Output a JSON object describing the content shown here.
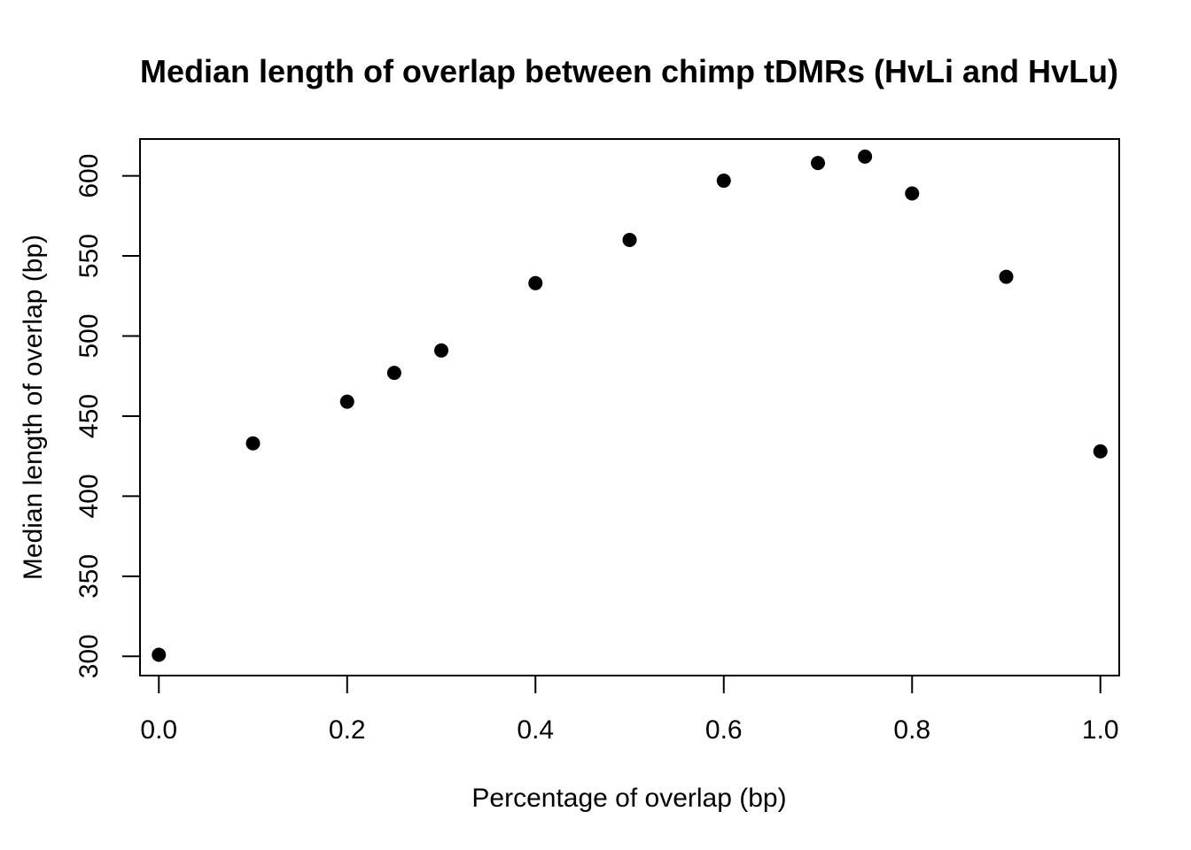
{
  "chart_data": {
    "type": "scatter",
    "title": "Median length of overlap between chimp tDMRs (HvLi and HvLu)",
    "xlabel": "Percentage of overlap (bp)",
    "ylabel": "Median length of overlap (bp)",
    "xlim": [
      -0.02,
      1.02
    ],
    "ylim": [
      288,
      623
    ],
    "xticks": [
      "0.0",
      "0.2",
      "0.4",
      "0.6",
      "0.8",
      "1.0"
    ],
    "yticks": [
      "300",
      "350",
      "400",
      "450",
      "500",
      "550",
      "600"
    ],
    "grid": false,
    "legend": "none",
    "point_color": "#000000",
    "points": [
      {
        "x": 0.0,
        "y": 301
      },
      {
        "x": 0.1,
        "y": 433
      },
      {
        "x": 0.2,
        "y": 459
      },
      {
        "x": 0.25,
        "y": 477
      },
      {
        "x": 0.3,
        "y": 491
      },
      {
        "x": 0.4,
        "y": 533
      },
      {
        "x": 0.5,
        "y": 560
      },
      {
        "x": 0.6,
        "y": 597
      },
      {
        "x": 0.7,
        "y": 608
      },
      {
        "x": 0.75,
        "y": 612
      },
      {
        "x": 0.8,
        "y": 589
      },
      {
        "x": 0.9,
        "y": 537
      },
      {
        "x": 1.0,
        "y": 428
      }
    ]
  }
}
